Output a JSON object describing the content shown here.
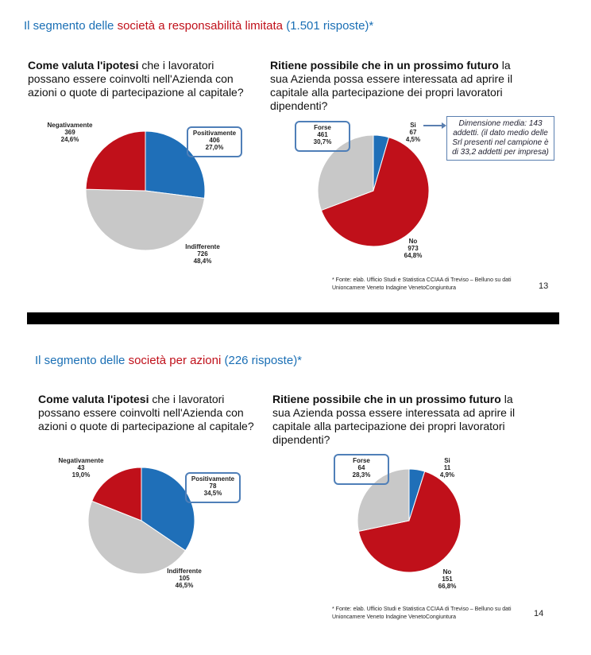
{
  "slides": [
    {
      "title": [
        "Il segmento delle ",
        "società a responsabilità limitata",
        " (1.501 risposte)*"
      ],
      "questions": [
        [
          "Come valuta l'ipotesi",
          " che i lavoratori possano essere coinvolti nell'Azienda con azioni o quote di partecipazione al capitale?"
        ],
        [
          "Ritiene possibile che in un prossimo futuro",
          " la sua Azienda possa essere interessata ad aprire il capitale alla partecipazione dei propri lavoratori dipendenti?"
        ]
      ],
      "callout": "Dimensione media: 143 addetti. (il dato medio delle Srl presenti nel campione è di 33,2 addetti per impresa)",
      "footnote": "* Fonte: elab. Ufficio Studi e Statistica CCIAA di Treviso – Belluno su dati Unioncamere Veneto Indagine VenetoCongiuntura",
      "page": "13"
    },
    {
      "title": [
        "Il segmento delle ",
        "società per azioni",
        " (226 risposte)*"
      ],
      "questions": [
        [
          "Come valuta l'ipotesi",
          " che i lavoratori possano essere coinvolti nell'Azienda con azioni o quote di partecipazione al capitale?"
        ],
        [
          "Ritiene possibile che in un prossimo futuro",
          " la sua Azienda possa essere interessata ad aprire il capitale alla partecipazione dei propri lavoratori dipendenti?"
        ]
      ],
      "footnote": "* Fonte: elab. Ufficio Studi e Statistica CCIAA di Treviso – Belluno su dati Unioncamere Veneto Indagine VenetoCongiuntura",
      "page": "14"
    }
  ],
  "chart_data": [
    {
      "type": "pie",
      "categories": [
        "Positivamente",
        "Indifferente",
        "Negativamente"
      ],
      "counts": [
        406,
        726,
        369
      ],
      "values": [
        27.0,
        48.4,
        24.6
      ],
      "value_labels": [
        "27,0%",
        "48,4%",
        "24,6%"
      ],
      "colors": [
        "#1f6fb8",
        "#c8c8c8",
        "#c0101a"
      ]
    },
    {
      "type": "pie",
      "categories": [
        "Si",
        "No",
        "Forse"
      ],
      "counts": [
        67,
        973,
        461
      ],
      "values": [
        4.5,
        64.8,
        30.7
      ],
      "value_labels": [
        "4,5%",
        "64,8%",
        "30,7%"
      ],
      "colors": [
        "#1f6fb8",
        "#c0101a",
        "#c8c8c8"
      ]
    },
    {
      "type": "pie",
      "categories": [
        "Positivamente",
        "Indifferente",
        "Negativamente"
      ],
      "counts": [
        78,
        105,
        43
      ],
      "values": [
        34.5,
        46.5,
        19.0
      ],
      "value_labels": [
        "34,5%",
        "46,5%",
        "19,0%"
      ],
      "colors": [
        "#1f6fb8",
        "#c8c8c8",
        "#c0101a"
      ]
    },
    {
      "type": "pie",
      "categories": [
        "Si",
        "No",
        "Forse"
      ],
      "counts": [
        11,
        151,
        64
      ],
      "values": [
        4.9,
        66.8,
        28.3
      ],
      "value_labels": [
        "4,9%",
        "66,8%",
        "28,3%"
      ],
      "colors": [
        "#1f6fb8",
        "#c0101a",
        "#c8c8c8"
      ]
    }
  ]
}
